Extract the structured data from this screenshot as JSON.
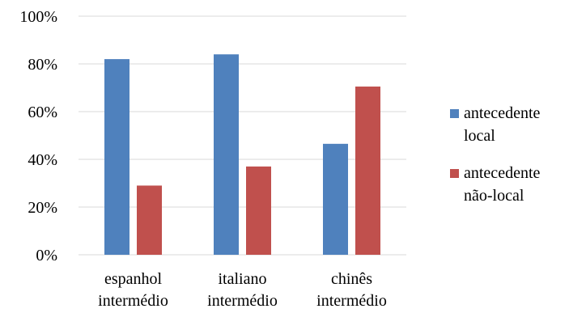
{
  "chart_data": {
    "type": "bar",
    "categories": [
      [
        "espanhol",
        "intermédio"
      ],
      [
        "italiano",
        "intermédio"
      ],
      [
        "chinês",
        "intermédio"
      ]
    ],
    "series": [
      {
        "name": [
          "antecedente",
          "local"
        ],
        "values": [
          82,
          84,
          46.5
        ],
        "color": "#4f81bd"
      },
      {
        "name": [
          "antecedente",
          "não-local"
        ],
        "values": [
          29,
          37,
          70.5
        ],
        "color": "#c0504d"
      }
    ],
    "yticks": [
      "0%",
      "20%",
      "40%",
      "60%",
      "80%",
      "100%"
    ],
    "ylim": [
      0,
      100
    ],
    "grid": true,
    "legend": "right"
  }
}
